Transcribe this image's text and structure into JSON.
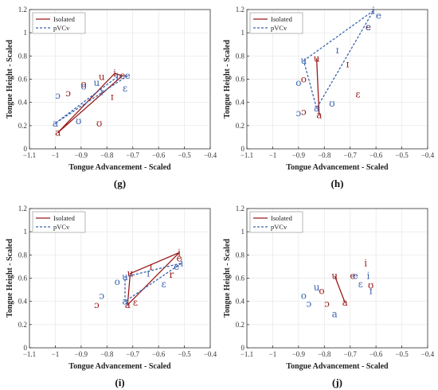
{
  "colors": {
    "isolated": "#9b1b1b",
    "pvcv": "#3a64b0",
    "grid": "#e6e6e6",
    "axis": "#333333"
  },
  "chart_data": [
    {
      "type": "scatter",
      "panel_label": "(g)",
      "xlabel": "Tongue Advancement - Scaled",
      "ylabel": "Tongue Height - Scaled",
      "xlim": [
        -1.1,
        -0.4
      ],
      "ylim": [
        0,
        1.2
      ],
      "xticks": [
        "−1.1",
        "−1",
        "−0.9",
        "−0.8",
        "−0.7",
        "−0.6",
        "−0.5",
        "−0.4"
      ],
      "yticks": [
        "0",
        "0.2",
        "0.4",
        "0.6",
        "0.8",
        "1",
        "1.2"
      ],
      "legend": {
        "position": "top-left",
        "entries": [
          "Isolated",
          "pVCv"
        ]
      },
      "series": [
        {
          "name": "Isolated",
          "line": [
            [
              -0.99,
              0.14
            ],
            [
              -0.77,
              0.65
            ],
            [
              -0.74,
              0.63
            ],
            [
              -0.99,
              0.14
            ]
          ],
          "points": [
            {
              "label": "a",
              "x": -0.99,
              "y": 0.14
            },
            {
              "label": "i",
              "x": -0.77,
              "y": 0.65
            },
            {
              "label": "e",
              "x": -0.74,
              "y": 0.63
            },
            {
              "label": "u",
              "x": -0.82,
              "y": 0.62
            },
            {
              "label": "o",
              "x": -0.89,
              "y": 0.56
            },
            {
              "label": "ɔ",
              "x": -0.95,
              "y": 0.48
            },
            {
              "label": "ɪ",
              "x": -0.78,
              "y": 0.45
            },
            {
              "label": "ʊ",
              "x": -0.83,
              "y": 0.22
            }
          ]
        },
        {
          "name": "pVCv",
          "line": [
            [
              -1.0,
              0.22
            ],
            [
              -0.76,
              0.62
            ],
            [
              -0.72,
              0.63
            ],
            [
              -1.0,
              0.22
            ]
          ],
          "points": [
            {
              "label": "a",
              "x": -1.0,
              "y": 0.22
            },
            {
              "label": "i",
              "x": -0.76,
              "y": 0.62
            },
            {
              "label": "e",
              "x": -0.72,
              "y": 0.63
            },
            {
              "label": "u",
              "x": -0.84,
              "y": 0.57
            },
            {
              "label": "o",
              "x": -0.89,
              "y": 0.54
            },
            {
              "label": "ɔ",
              "x": -0.99,
              "y": 0.46
            },
            {
              "label": "ɪ",
              "x": -0.82,
              "y": 0.49
            },
            {
              "label": "ɛ",
              "x": -0.73,
              "y": 0.52
            },
            {
              "label": "ʊ",
              "x": -0.91,
              "y": 0.24
            }
          ]
        }
      ]
    },
    {
      "type": "scatter",
      "panel_label": "(h)",
      "xlabel": "Tongue Advancement - Scaled",
      "ylabel": "Tongue Height - Scaled",
      "xlim": [
        -1.1,
        -0.4
      ],
      "ylim": [
        0,
        1.2
      ],
      "xticks": [
        "−1.1",
        "−1",
        "−0.9",
        "−0.8",
        "−0.7",
        "−0.6",
        "−0.5",
        "−0.4"
      ],
      "yticks": [
        "0",
        "0.2",
        "0.4",
        "0.6",
        "0.8",
        "1",
        "1.2"
      ],
      "legend": {
        "position": "top-left",
        "entries": [
          "Isolated",
          "pVCv"
        ]
      },
      "series": [
        {
          "name": "Isolated",
          "line": [
            [
              -0.83,
              0.78
            ],
            [
              -0.82,
              0.29
            ]
          ],
          "points": [
            {
              "label": "u",
              "x": -0.83,
              "y": 0.78
            },
            {
              "label": "a",
              "x": -0.82,
              "y": 0.29
            },
            {
              "label": "i",
              "x": -0.61,
              "y": 1.19
            },
            {
              "label": "e",
              "x": -0.63,
              "y": 1.05
            },
            {
              "label": "ɪ",
              "x": -0.71,
              "y": 0.73
            },
            {
              "label": "o",
              "x": -0.88,
              "y": 0.6
            },
            {
              "label": "ɔ",
              "x": -0.88,
              "y": 0.32
            },
            {
              "label": "ɛ",
              "x": -0.67,
              "y": 0.47
            }
          ]
        },
        {
          "name": "pVCv",
          "line": [
            [
              -0.88,
              0.76
            ],
            [
              -0.61,
              1.19
            ],
            [
              -0.83,
              0.35
            ],
            [
              -0.88,
              0.76
            ]
          ],
          "points": [
            {
              "label": "u",
              "x": -0.88,
              "y": 0.76
            },
            {
              "label": "i",
              "x": -0.61,
              "y": 1.19
            },
            {
              "label": "a",
              "x": -0.83,
              "y": 0.35
            },
            {
              "label": "e",
              "x": -0.59,
              "y": 1.15
            },
            {
              "label": "o",
              "x": -0.9,
              "y": 0.57
            },
            {
              "label": "ɪ",
              "x": -0.75,
              "y": 0.85
            },
            {
              "label": "ʊ",
              "x": -0.77,
              "y": 0.39
            },
            {
              "label": "ɔ",
              "x": -0.9,
              "y": 0.31
            },
            {
              "label": "ɛ",
              "x": -0.63,
              "y": 1.05
            }
          ]
        }
      ]
    },
    {
      "type": "scatter",
      "panel_label": "(i)",
      "xlabel": "Tongue Advancement - Scaled",
      "ylabel": "Tongue Height - Scaled",
      "xlim": [
        -1.1,
        -0.4
      ],
      "ylim": [
        0,
        1.2
      ],
      "xticks": [
        "−1.1",
        "−1",
        "−0.9",
        "−0.8",
        "−0.7",
        "−0.6",
        "−0.5",
        "−0.4"
      ],
      "yticks": [
        "0",
        "0.2",
        "0.4",
        "0.6",
        "0.8",
        "1",
        "1.2"
      ],
      "legend": {
        "position": "top-left",
        "entries": [
          "Isolated",
          "pVCv"
        ]
      },
      "series": [
        {
          "name": "Isolated",
          "line": [
            [
              -0.72,
              0.37
            ],
            [
              -0.71,
              0.64
            ],
            [
              -0.52,
              0.82
            ],
            [
              -0.72,
              0.37
            ]
          ],
          "points": [
            {
              "label": "a",
              "x": -0.72,
              "y": 0.37
            },
            {
              "label": "u",
              "x": -0.71,
              "y": 0.64
            },
            {
              "label": "i",
              "x": -0.52,
              "y": 0.82
            },
            {
              "label": "ɪ",
              "x": -0.63,
              "y": 0.7
            },
            {
              "label": "e",
              "x": -0.52,
              "y": 0.77
            },
            {
              "label": "ɛ",
              "x": -0.69,
              "y": 0.39
            },
            {
              "label": "ɔ",
              "x": -0.84,
              "y": 0.37
            },
            {
              "label": "r",
              "x": -0.55,
              "y": 0.63
            }
          ]
        },
        {
          "name": "pVCv",
          "line": [
            [
              -0.73,
              0.4
            ],
            [
              -0.73,
              0.61
            ],
            [
              -0.51,
              0.73
            ],
            [
              -0.73,
              0.4
            ]
          ],
          "points": [
            {
              "label": "a",
              "x": -0.73,
              "y": 0.4
            },
            {
              "label": "u",
              "x": -0.73,
              "y": 0.61
            },
            {
              "label": "i",
              "x": -0.51,
              "y": 0.73
            },
            {
              "label": "e",
              "x": -0.53,
              "y": 0.7
            },
            {
              "label": "o",
              "x": -0.76,
              "y": 0.57
            },
            {
              "label": "ɪ",
              "x": -0.64,
              "y": 0.64
            },
            {
              "label": "ɛ",
              "x": -0.58,
              "y": 0.55
            },
            {
              "label": "ɔ",
              "x": -0.82,
              "y": 0.45
            }
          ]
        }
      ]
    },
    {
      "type": "scatter",
      "panel_label": "(j)",
      "xlabel": "Tongue Advancement - Scaled",
      "ylabel": "Tongue Height - Scaled",
      "xlim": [
        -1.1,
        -0.4
      ],
      "ylim": [
        0,
        1.2
      ],
      "xticks": [
        "−1.1",
        "−1",
        "−0.9",
        "−0.8",
        "−0.7",
        "−0.6",
        "−0.5",
        "−0.4"
      ],
      "yticks": [
        "0",
        "0.2",
        "0.4",
        "0.6",
        "0.8",
        "1",
        "1.2"
      ],
      "legend": {
        "position": "top-left",
        "entries": [
          "Isolated",
          "pVCv"
        ]
      },
      "series": [
        {
          "name": "Isolated",
          "line": [
            [
              -0.76,
              0.62
            ],
            [
              -0.72,
              0.39
            ]
          ],
          "points": [
            {
              "label": "u",
              "x": -0.76,
              "y": 0.62
            },
            {
              "label": "a",
              "x": -0.72,
              "y": 0.39
            },
            {
              "label": "i",
              "x": -0.64,
              "y": 0.73
            },
            {
              "label": "e",
              "x": -0.69,
              "y": 0.62
            },
            {
              "label": "o",
              "x": -0.81,
              "y": 0.49
            },
            {
              "label": "ɔ",
              "x": -0.79,
              "y": 0.38
            },
            {
              "label": "ʊ",
              "x": -0.62,
              "y": 0.54
            }
          ]
        },
        {
          "name": "pVCv",
          "line": [],
          "points": [
            {
              "label": "u",
              "x": -0.83,
              "y": 0.52
            },
            {
              "label": "a",
              "x": -0.76,
              "y": 0.29
            },
            {
              "label": "i",
              "x": -0.63,
              "y": 0.62
            },
            {
              "label": "e",
              "x": -0.68,
              "y": 0.62
            },
            {
              "label": "o",
              "x": -0.88,
              "y": 0.45
            },
            {
              "label": "ɛ",
              "x": -0.66,
              "y": 0.55
            },
            {
              "label": "ɪ",
              "x": -0.62,
              "y": 0.49
            },
            {
              "label": "ɔ",
              "x": -0.86,
              "y": 0.38
            }
          ]
        }
      ]
    }
  ]
}
